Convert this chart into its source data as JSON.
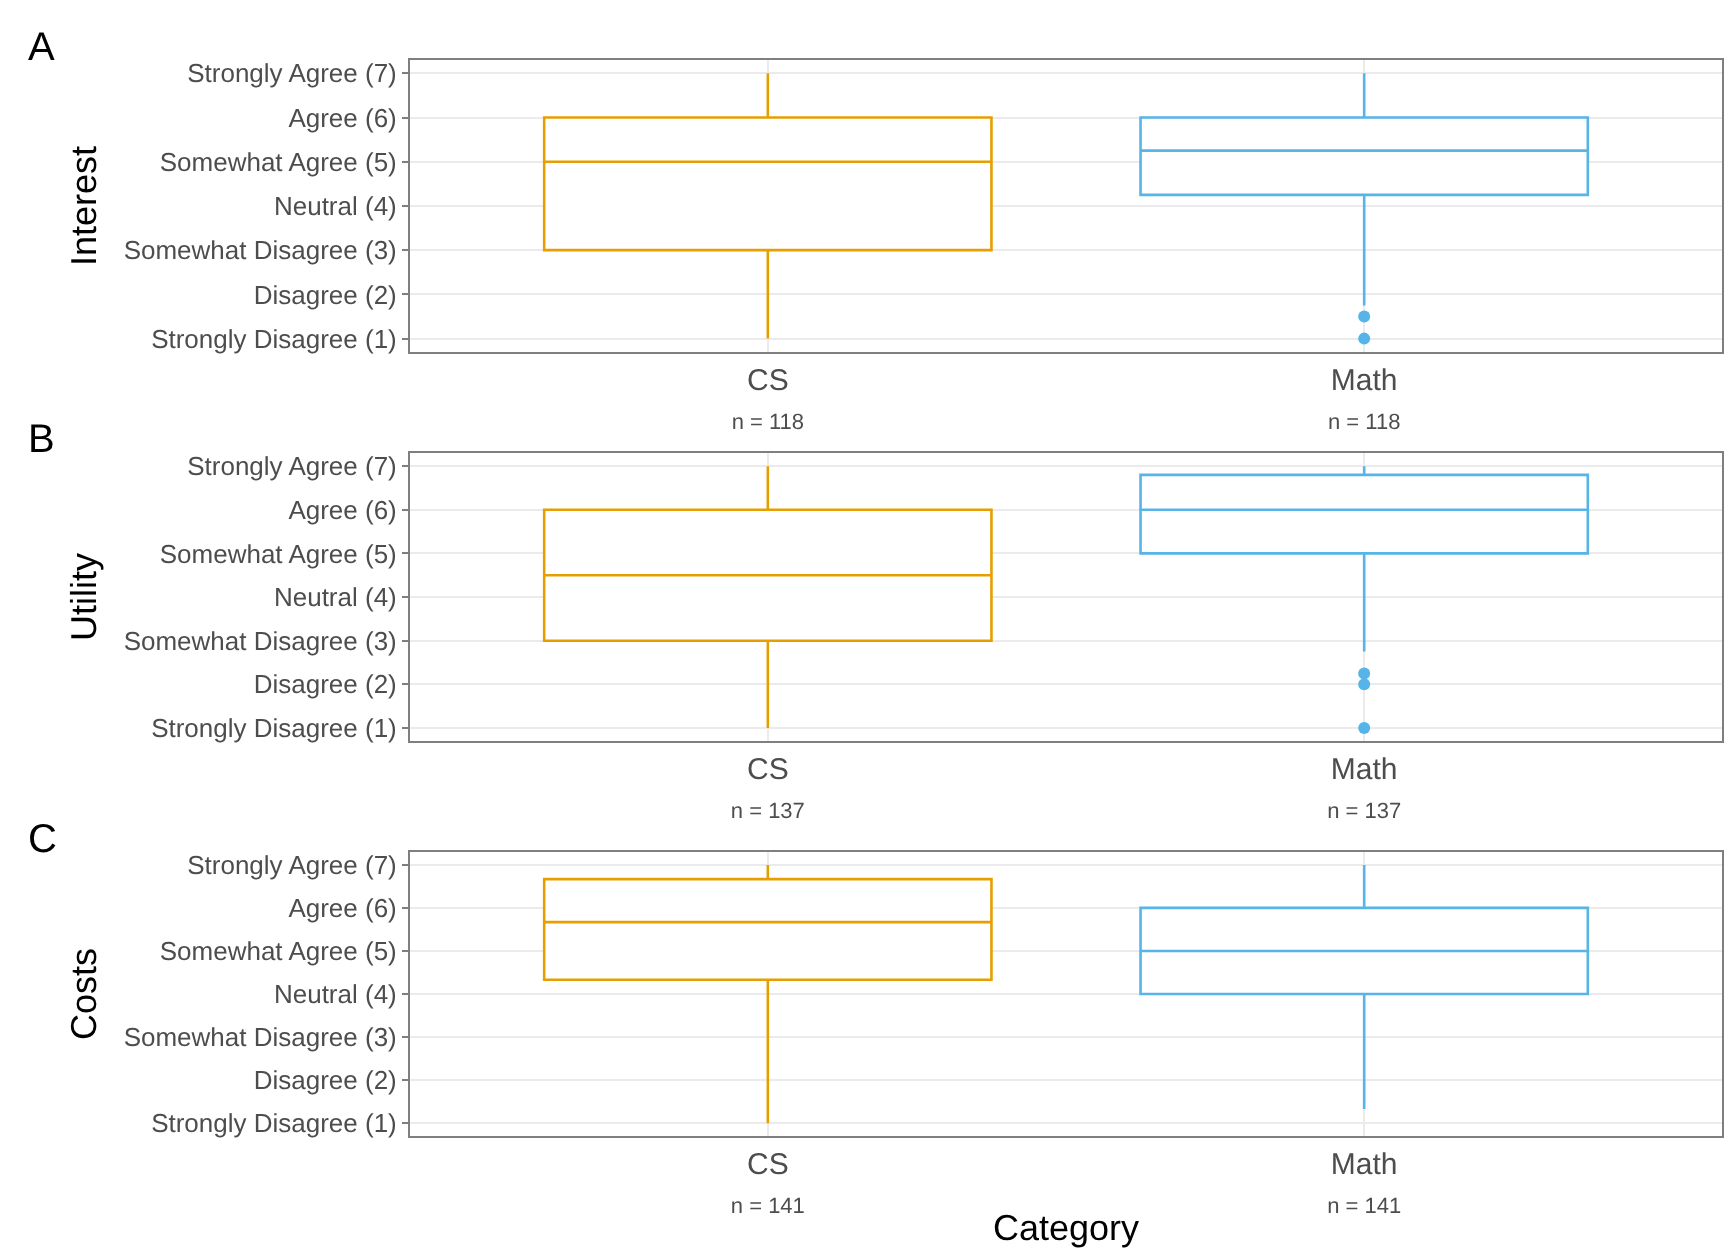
{
  "chart_data": [
    {
      "type": "box",
      "title": "A",
      "ylabel": "Interest",
      "categories": [
        "CS\nn = 118",
        "Math\nn = 118"
      ],
      "colors": [
        "#e69f00",
        "#56b4e9"
      ],
      "boxes": [
        {
          "low": 1,
          "q1": 3,
          "median": 5,
          "q3": 6,
          "high": 7
        },
        {
          "low": 1.75,
          "q1": 4.25,
          "median": 5.25,
          "q3": 6,
          "high": 7,
          "outliers": [
            1.5,
            1
          ]
        }
      ],
      "ylim": [
        0.7,
        7.3
      ],
      "yticks": [
        {
          "value": 1,
          "label": "Strongly Disagree (1)"
        },
        {
          "value": 2,
          "label": "Disagree (2)"
        },
        {
          "value": 3,
          "label": "Somewhat Disagree (3)"
        },
        {
          "value": 4,
          "label": "Neutral (4)"
        },
        {
          "value": 5,
          "label": "Somewhat Agree (5)"
        },
        {
          "value": 6,
          "label": "Agree (6)"
        },
        {
          "value": 7,
          "label": "Strongly Agree (7)"
        }
      ],
      "grid": true
    },
    {
      "type": "box",
      "title": "B",
      "ylabel": "Utility",
      "categories": [
        "CS\nn = 137",
        "Math\nn = 137"
      ],
      "colors": [
        "#e69f00",
        "#56b4e9"
      ],
      "boxes": [
        {
          "low": 1,
          "q1": 3,
          "median": 4.5,
          "q3": 6,
          "high": 7
        },
        {
          "low": 2.75,
          "q1": 5,
          "median": 6,
          "q3": 6.8,
          "high": 7,
          "outliers": [
            2.25,
            2,
            1
          ]
        }
      ],
      "ylim": [
        0.7,
        7.3
      ],
      "yticks": [
        {
          "value": 1,
          "label": "Strongly Disagree (1)"
        },
        {
          "value": 2,
          "label": "Disagree (2)"
        },
        {
          "value": 3,
          "label": "Somewhat Disagree (3)"
        },
        {
          "value": 4,
          "label": "Neutral (4)"
        },
        {
          "value": 5,
          "label": "Somewhat Agree (5)"
        },
        {
          "value": 6,
          "label": "Agree (6)"
        },
        {
          "value": 7,
          "label": "Strongly Agree (7)"
        }
      ],
      "grid": true
    },
    {
      "type": "box",
      "title": "C",
      "ylabel": "Costs",
      "xlabel": "Category",
      "categories": [
        "CS\nn = 141",
        "Math\nn = 141"
      ],
      "colors": [
        "#e69f00",
        "#56b4e9"
      ],
      "boxes": [
        {
          "low": 1,
          "q1": 4.33,
          "median": 5.67,
          "q3": 6.67,
          "high": 7
        },
        {
          "low": 1.33,
          "q1": 4,
          "median": 5,
          "q3": 6,
          "high": 7
        }
      ],
      "ylim": [
        0.7,
        7.3
      ],
      "yticks": [
        {
          "value": 1,
          "label": "Strongly Disagree (1)"
        },
        {
          "value": 2,
          "label": "Disagree (2)"
        },
        {
          "value": 3,
          "label": "Somewhat Disagree (3)"
        },
        {
          "value": 4,
          "label": "Neutral (4)"
        },
        {
          "value": 5,
          "label": "Somewhat Agree (5)"
        },
        {
          "value": 6,
          "label": "Agree (6)"
        },
        {
          "value": 7,
          "label": "Strongly Agree (7)"
        }
      ],
      "grid": true
    }
  ]
}
